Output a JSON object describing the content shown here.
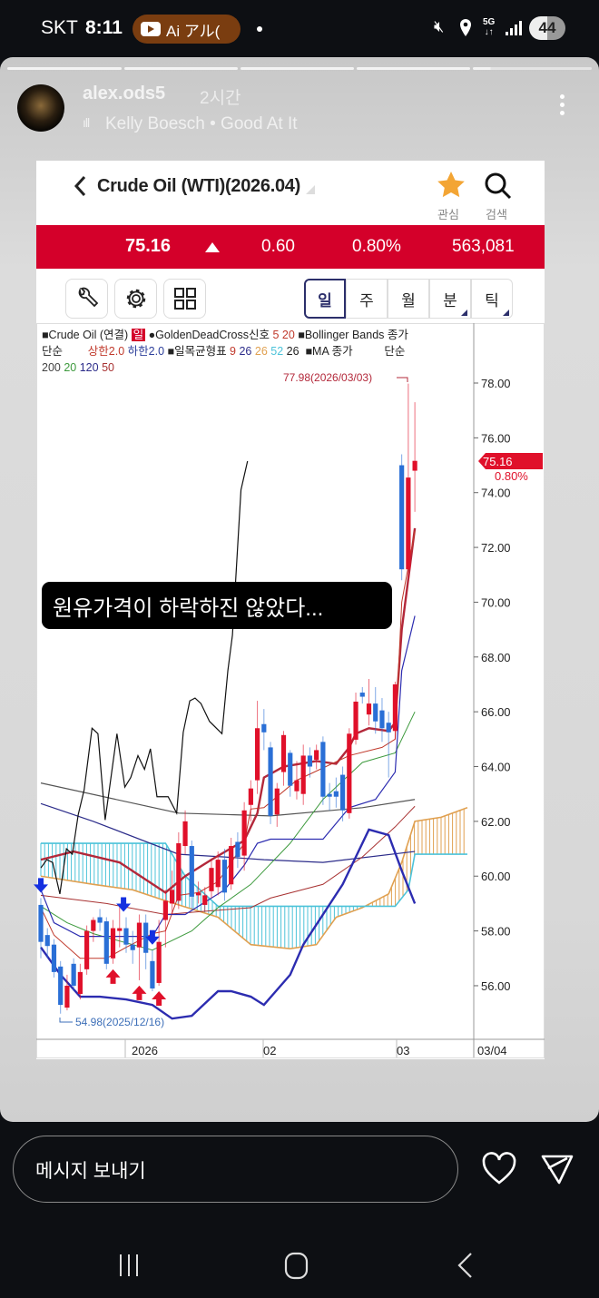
{
  "status_bar": {
    "carrier": "SKT",
    "time": "8:11",
    "pill_label": "Ai アル(",
    "battery": "44"
  },
  "story": {
    "username": "alex.ods5",
    "time_ago": "2시간",
    "music": "Kelly Boesch • Good At It",
    "segments": 5,
    "current_segment": 5
  },
  "app": {
    "title": "Crude Oil (WTI)(2026.04)",
    "favorite_label": "관심",
    "search_label": "검색",
    "price": "75.16",
    "change": "0.60",
    "change_pct": "0.80%",
    "volume": "563,081",
    "periods": [
      "일",
      "주",
      "월",
      "분",
      "틱"
    ],
    "selected_period": "일",
    "legend": {
      "line1": [
        {
          "t": "■Crude Oil (연결) ",
          "c": "#222"
        },
        {
          "t": "일",
          "c": "#fff",
          "bg": "#d4002a"
        },
        {
          "t": " ●GoldenDeadCross신호 ",
          "c": "#222"
        },
        {
          "t": "5 20",
          "c": "#c0392b"
        },
        {
          "t": " ■Bollinger Bands 종가",
          "c": "#222"
        }
      ],
      "line2": [
        {
          "t": "단순        ",
          "c": "#222"
        },
        {
          "t": "상한2.0 ",
          "c": "#c0392b"
        },
        {
          "t": "하한2.0",
          "c": "#2c3e9a"
        },
        {
          "t": " ■일목균형표 ",
          "c": "#222"
        },
        {
          "t": "9 ",
          "c": "#c0392b"
        },
        {
          "t": "26 ",
          "c": "#2c2c8a"
        },
        {
          "t": "26 ",
          "c": "#e0a050"
        },
        {
          "t": "52 ",
          "c": "#4cc3d9"
        },
        {
          "t": "26",
          "c": "#222"
        },
        {
          "t": "  ■MA 종가          단순",
          "c": "#222"
        }
      ],
      "line3": [
        {
          "t": "200 ",
          "c": "#444"
        },
        {
          "t": "20 ",
          "c": "#3d9a3d"
        },
        {
          "t": "120 ",
          "c": "#2c2c8a"
        },
        {
          "t": "50",
          "c": "#a83232"
        }
      ]
    }
  },
  "caption": "원유가격이 하락하진 않았다...",
  "reply": {
    "placeholder": "메시지 보내기"
  },
  "chart_data": {
    "type": "candlestick",
    "colors": {
      "up": "#e0102a",
      "down": "#2a6fd6"
    },
    "y_ticks": [
      "78.00",
      "76.00",
      "74.00",
      "72.00",
      "70.00",
      "68.00",
      "66.00",
      "64.00",
      "62.00",
      "60.00",
      "58.00",
      "56.00"
    ],
    "ylim": [
      54.5,
      79
    ],
    "x_labels": [
      "2026",
      "02",
      "03"
    ],
    "last_date_label": "03/04",
    "current_price_tag": "75.16",
    "current_change_tag": "0.80%",
    "high_annotation": "77.98(2026/03/03)",
    "low_annotation": "54.98(2025/12/16)",
    "candles_ohlc": [
      [
        58.95,
        59.2,
        57.0,
        57.6
      ],
      [
        57.85,
        58.1,
        57.0,
        57.45
      ],
      [
        57.5,
        57.7,
        56.3,
        56.5
      ],
      [
        56.7,
        56.9,
        54.98,
        55.3
      ],
      [
        55.2,
        56.4,
        55.1,
        56.0
      ],
      [
        56.8,
        57.0,
        55.8,
        56.0
      ],
      [
        55.7,
        56.8,
        55.5,
        56.5
      ],
      [
        56.6,
        58.2,
        56.4,
        58.0
      ],
      [
        58.0,
        58.5,
        57.6,
        58.4
      ],
      [
        58.5,
        58.8,
        58.0,
        58.3
      ],
      [
        58.35,
        58.5,
        56.6,
        56.8
      ],
      [
        57.0,
        58.4,
        56.8,
        58.1
      ],
      [
        58.0,
        58.9,
        57.4,
        58.1
      ],
      [
        58.1,
        58.5,
        57.2,
        57.5
      ],
      [
        57.5,
        58.0,
        56.8,
        57.3
      ],
      [
        57.4,
        58.6,
        56.2,
        58.3
      ],
      [
        58.3,
        58.6,
        56.6,
        57.2
      ],
      [
        56.9,
        57.3,
        55.8,
        55.9
      ],
      [
        56.1,
        58.4,
        56.0,
        57.6
      ],
      [
        58.4,
        59.5,
        57.4,
        59.1
      ],
      [
        59.0,
        60.2,
        58.6,
        59.5
      ],
      [
        59.1,
        61.6,
        58.8,
        61.2
      ],
      [
        61.1,
        62.4,
        60.8,
        62.0
      ],
      [
        61.1,
        61.3,
        58.8,
        59.25
      ],
      [
        59.3,
        59.8,
        59.0,
        59.4
      ],
      [
        58.95,
        59.6,
        58.7,
        59.3
      ],
      [
        59.45,
        60.6,
        59.2,
        60.3
      ],
      [
        59.6,
        60.9,
        59.3,
        60.6
      ],
      [
        60.6,
        61.0,
        59.1,
        59.4
      ],
      [
        59.7,
        61.4,
        59.5,
        61.1
      ],
      [
        61.25,
        61.6,
        60.3,
        60.7
      ],
      [
        60.75,
        62.7,
        60.2,
        62.4
      ],
      [
        62.6,
        63.5,
        62.0,
        63.2
      ],
      [
        63.5,
        66.4,
        63.0,
        65.4
      ],
      [
        65.55,
        66.1,
        64.6,
        65.25
      ],
      [
        64.7,
        64.9,
        61.9,
        62.2
      ],
      [
        62.25,
        63.4,
        61.8,
        63.2
      ],
      [
        63.8,
        65.3,
        63.3,
        65.15
      ],
      [
        64.5,
        64.6,
        62.9,
        63.3
      ],
      [
        63.1,
        64.2,
        62.8,
        63.5
      ],
      [
        63.0,
        64.8,
        62.6,
        64.4
      ],
      [
        64.4,
        64.7,
        63.6,
        64.0
      ],
      [
        64.25,
        64.8,
        63.9,
        64.6
      ],
      [
        64.9,
        65.1,
        62.6,
        62.9
      ],
      [
        63.0,
        63.4,
        62.4,
        62.9
      ],
      [
        63.1,
        63.6,
        62.5,
        62.9
      ],
      [
        63.7,
        64.0,
        62.0,
        62.4
      ],
      [
        62.3,
        65.4,
        62.1,
        65.2
      ],
      [
        64.98,
        66.7,
        64.8,
        66.37
      ],
      [
        66.7,
        66.9,
        66.3,
        66.55
      ],
      [
        65.9,
        67.2,
        65.5,
        66.3
      ],
      [
        66.3,
        66.9,
        65.2,
        65.65
      ],
      [
        66.05,
        66.5,
        64.9,
        65.4
      ],
      [
        65.6,
        66.0,
        63.6,
        65.25
      ],
      [
        65.3,
        67.1,
        65.0,
        67.0
      ],
      [
        75.0,
        75.4,
        70.8,
        71.2
      ],
      [
        71.2,
        77.98,
        70.9,
        74.55
      ],
      [
        74.8,
        77.3,
        73.3,
        75.16
      ]
    ],
    "lines": [
      {
        "color": "#555555",
        "width": 1.2,
        "points": [
          [
            0,
            63.4
          ],
          [
            21,
            62.3
          ],
          [
            35,
            62.2
          ],
          [
            49,
            62.5
          ],
          [
            57,
            62.8
          ]
        ]
      },
      {
        "color": "#2c2c8a",
        "width": 1.2,
        "points": [
          [
            0,
            62.65
          ],
          [
            8,
            62.0
          ],
          [
            21,
            60.8
          ],
          [
            28,
            60.7
          ],
          [
            34,
            60.6
          ],
          [
            43,
            60.5
          ],
          [
            57,
            60.9
          ]
        ]
      },
      {
        "color": "#a83232",
        "width": 1,
        "points": [
          [
            0,
            59.3
          ],
          [
            10,
            59.0
          ],
          [
            19,
            58.6
          ],
          [
            24,
            58.7
          ],
          [
            32,
            58.85
          ],
          [
            35,
            59.2
          ],
          [
            43,
            59.7
          ],
          [
            49,
            60.7
          ],
          [
            54,
            61.8
          ],
          [
            57,
            62.55
          ]
        ]
      },
      {
        "color": "#3d9a3d",
        "width": 1,
        "points": [
          [
            0,
            58.9
          ],
          [
            4,
            58.3
          ],
          [
            8,
            57.9
          ],
          [
            17,
            57.3
          ],
          [
            23,
            58.0
          ],
          [
            27,
            58.85
          ],
          [
            32,
            59.7
          ],
          [
            38,
            61.2
          ],
          [
            43,
            62.8
          ],
          [
            49,
            64.15
          ],
          [
            54,
            64.5
          ],
          [
            57,
            66.0
          ]
        ]
      },
      {
        "color": "#b3283a",
        "width": 2.4,
        "points": [
          [
            0,
            60.6
          ],
          [
            5,
            60.9
          ],
          [
            12,
            60.5
          ],
          [
            19,
            59.4
          ],
          [
            22,
            60.0
          ],
          [
            26,
            60.6
          ],
          [
            31,
            61.3
          ],
          [
            33,
            62.3
          ],
          [
            34,
            63.6
          ],
          [
            37,
            64.0
          ],
          [
            42,
            64.2
          ],
          [
            45,
            64.1
          ],
          [
            47,
            64.7
          ],
          [
            48,
            65.2
          ],
          [
            50,
            65.4
          ],
          [
            53,
            65.3
          ],
          [
            54,
            65.6
          ],
          [
            55,
            69.0
          ],
          [
            57,
            72.7
          ]
        ]
      },
      {
        "color": "#c0392b",
        "width": 1,
        "points": [
          [
            0,
            58.85
          ],
          [
            2,
            57.85
          ],
          [
            6,
            57.0
          ],
          [
            10,
            57.0
          ],
          [
            13,
            57.4
          ],
          [
            17,
            57.9
          ],
          [
            19,
            58.0
          ],
          [
            21,
            59.3
          ],
          [
            24,
            59.4
          ],
          [
            27,
            59.8
          ],
          [
            31,
            61.2
          ],
          [
            32,
            62.45
          ],
          [
            34,
            62.5
          ],
          [
            39,
            63.5
          ],
          [
            47,
            64.4
          ],
          [
            52,
            64.7
          ],
          [
            54,
            65.0
          ],
          [
            55,
            70.0
          ],
          [
            57,
            72.6
          ]
        ]
      },
      {
        "color": "#2c2cb0",
        "width": 1.2,
        "points": [
          [
            0,
            59.5
          ],
          [
            2,
            58.3
          ],
          [
            6,
            57.8
          ],
          [
            11,
            57.8
          ],
          [
            17,
            57.8
          ],
          [
            19,
            58.6
          ],
          [
            22,
            58.6
          ],
          [
            28,
            59.5
          ],
          [
            31,
            60.4
          ],
          [
            33,
            61.2
          ],
          [
            35,
            61.35
          ],
          [
            43,
            61.35
          ],
          [
            47,
            62.5
          ],
          [
            51,
            62.8
          ],
          [
            54,
            63.8
          ],
          [
            55,
            67.5
          ],
          [
            57,
            69.5
          ]
        ]
      },
      {
        "color": "#2c2cb0",
        "width": 2.4,
        "points": [
          [
            0,
            57.4
          ],
          [
            3,
            56.4
          ],
          [
            6,
            55.6
          ],
          [
            9,
            55.6
          ],
          [
            13,
            55.5
          ],
          [
            17,
            55.3
          ],
          [
            20,
            54.8
          ],
          [
            23,
            54.9
          ],
          [
            27,
            55.8
          ],
          [
            29,
            55.8
          ],
          [
            32,
            55.6
          ],
          [
            34,
            55.3
          ],
          [
            38,
            56.4
          ],
          [
            40,
            57.5
          ],
          [
            46,
            59.7
          ],
          [
            50,
            61.7
          ],
          [
            53,
            61.5
          ],
          [
            55,
            60.2
          ],
          [
            57,
            59.0
          ]
        ]
      },
      {
        "color": "#111111",
        "width": 1.2,
        "points": [
          [
            0,
            60.3
          ],
          [
            0.9,
            60.6
          ],
          [
            1.8,
            60.5
          ],
          [
            2.9,
            59.35
          ],
          [
            3.9,
            61.0
          ],
          [
            4.8,
            60.8
          ],
          [
            5.7,
            62.25
          ],
          [
            6.6,
            63.15
          ],
          [
            7.8,
            65.4
          ],
          [
            8.7,
            65.2
          ],
          [
            9.8,
            62.05
          ],
          [
            11.6,
            65.2
          ],
          [
            12.8,
            63.25
          ],
          [
            13.7,
            63.6
          ],
          [
            14.8,
            64.4
          ],
          [
            15.8,
            63.9
          ],
          [
            16.7,
            64.65
          ],
          [
            17.7,
            62.9
          ],
          [
            19.4,
            62.9
          ],
          [
            20.7,
            62.3
          ],
          [
            21.7,
            65.25
          ],
          [
            22.7,
            66.4
          ],
          [
            23.5,
            66.5
          ],
          [
            24.4,
            66.3
          ],
          [
            25.7,
            65.65
          ],
          [
            27.6,
            65.2
          ],
          [
            28.5,
            67.5
          ],
          [
            29.2,
            68.8
          ],
          [
            30.5,
            74.1
          ],
          [
            31.5,
            75.15
          ]
        ]
      }
    ],
    "ichimoku_cloud": {
      "span_a_color": "#e0a050",
      "span_b_color": "#4cc3d9",
      "span_a": [
        [
          0,
          60.0
        ],
        [
          8,
          59.7
        ],
        [
          14,
          59.5
        ],
        [
          19,
          59.1
        ],
        [
          27,
          58.5
        ],
        [
          32,
          57.5
        ],
        [
          38,
          57.35
        ],
        [
          42,
          57.5
        ],
        [
          45,
          58.5
        ],
        [
          49,
          58.85
        ],
        [
          53,
          59.35
        ],
        [
          55,
          60.5
        ],
        [
          57,
          62.0
        ],
        [
          61,
          62.15
        ],
        [
          65,
          62.5
        ]
      ],
      "span_b": [
        [
          0,
          61.2
        ],
        [
          19,
          61.2
        ],
        [
          22,
          60.0
        ],
        [
          27,
          58.9
        ],
        [
          43,
          58.9
        ],
        [
          54,
          58.9
        ],
        [
          56,
          59.5
        ],
        [
          57,
          60.8
        ],
        [
          65,
          60.8
        ]
      ]
    },
    "signals": [
      {
        "type": "dead",
        "bar": 0
      },
      {
        "type": "golden",
        "bar": 11
      },
      {
        "type": "dead",
        "bar": 12.6
      },
      {
        "type": "golden",
        "bar": 15
      },
      {
        "type": "dead",
        "bar": 17
      },
      {
        "type": "golden",
        "bar": 18
      }
    ]
  }
}
